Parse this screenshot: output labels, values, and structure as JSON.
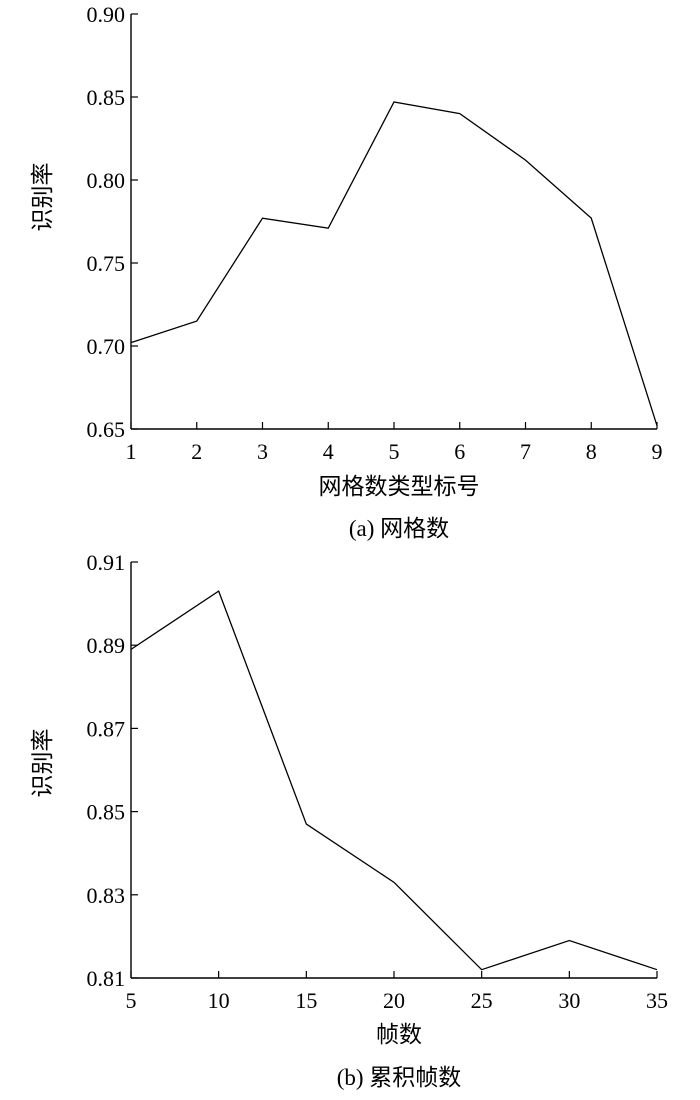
{
  "chart_data": [
    {
      "type": "line",
      "ylabel": "识别率",
      "xlabel": "网格数类型标号",
      "caption": "(a) 网格数",
      "x": [
        1,
        2,
        3,
        4,
        5,
        6,
        7,
        8,
        9
      ],
      "series": [
        {
          "values": [
            0.702,
            0.715,
            0.777,
            0.771,
            0.847,
            0.84,
            0.812,
            0.777,
            0.652
          ]
        }
      ],
      "xlim": [
        1,
        9
      ],
      "ylim": [
        0.65,
        0.9
      ],
      "xticks": [
        1,
        2,
        3,
        4,
        5,
        6,
        7,
        8,
        9
      ],
      "xtick_labels": [
        "1",
        "2",
        "3",
        "4",
        "5",
        "6",
        "7",
        "8",
        "9"
      ],
      "yticks": [
        0.65,
        0.7,
        0.75,
        0.8,
        0.85,
        0.9
      ],
      "ytick_labels": [
        "0.65",
        "0.70",
        "0.75",
        "0.80",
        "0.85",
        "0.90"
      ],
      "grid": false,
      "line_color": "#000000"
    },
    {
      "type": "line",
      "ylabel": "识别率",
      "xlabel": "帧数",
      "caption": "(b) 累积帧数",
      "x": [
        5,
        10,
        15,
        20,
        25,
        30,
        35
      ],
      "series": [
        {
          "values": [
            0.889,
            0.903,
            0.847,
            0.833,
            0.812,
            0.819,
            0.812
          ]
        }
      ],
      "xlim": [
        5,
        35
      ],
      "ylim": [
        0.81,
        0.91
      ],
      "xticks": [
        5,
        10,
        15,
        20,
        25,
        30,
        35
      ],
      "xtick_labels": [
        "5",
        "10",
        "15",
        "20",
        "25",
        "30",
        "35"
      ],
      "yticks": [
        0.81,
        0.83,
        0.85,
        0.87,
        0.89,
        0.91
      ],
      "ytick_labels": [
        "0.81",
        "0.83",
        "0.85",
        "0.87",
        "0.89",
        "0.91"
      ],
      "grid": false,
      "line_color": "#000000"
    }
  ]
}
